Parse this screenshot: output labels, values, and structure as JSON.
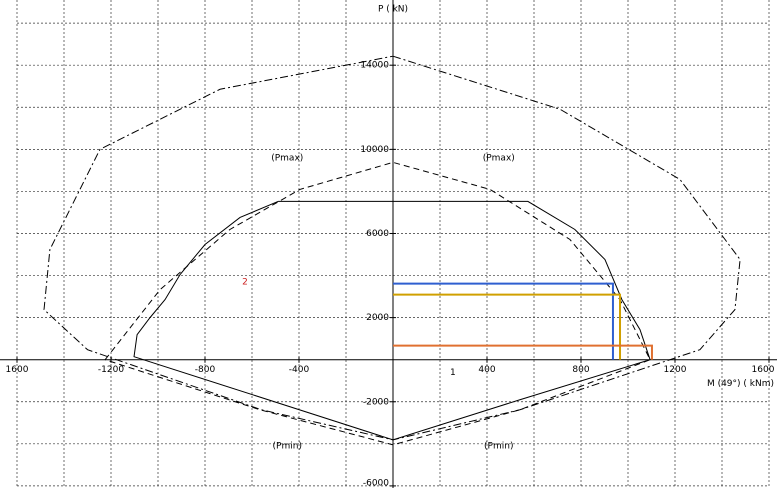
{
  "chart_data": {
    "type": "interaction",
    "x_label": "M (49°) ( kNm)",
    "y_label": "P ( kN)",
    "xlim": [
      -1600,
      1600
    ],
    "ylim": [
      -6100,
      17100
    ],
    "xticks": [
      {
        "value": -1600,
        "label": "1600"
      },
      -1200,
      -800,
      -400,
      400,
      800,
      1200,
      1600
    ],
    "yticks": [
      14000,
      10000,
      6000,
      2000,
      -2000,
      -6000
    ],
    "xgrid": [
      -1600,
      -1400,
      -1200,
      -1000,
      -800,
      -600,
      -400,
      -200,
      200,
      400,
      600,
      800,
      1000,
      1200,
      1400,
      1600
    ],
    "ygrid": [
      -6000,
      -4000,
      -2000,
      2000,
      4000,
      6000,
      8000,
      10000,
      12000,
      14000,
      16000
    ],
    "grid": true,
    "series": [
      {
        "style": "solid",
        "color": "#000000",
        "x": [
          -489,
          -651,
          -800,
          -906,
          -970,
          -1034,
          -1089,
          -1102,
          0,
          540,
          1094,
          1051,
          974,
          902,
          774,
          574,
          -489
        ],
        "values": [
          7524,
          6762,
          5476,
          4048,
          2857,
          2000,
          1190,
          143,
          -3810,
          -1905,
          0,
          1429,
          2857,
          4762,
          6190,
          7524,
          7524
        ]
      },
      {
        "style": "dashed",
        "color": "#000000",
        "x": [
          -1225,
          -991,
          -694,
          -396,
          0,
          413,
          753,
          966,
          1094,
          540,
          0,
          -566,
          -1225
        ],
        "values": [
          0,
          3333,
          6190,
          8095,
          9381,
          8095,
          5714,
          2857,
          0,
          -2381,
          -4048,
          -2381,
          0
        ]
      },
      {
        "style": "dashdot",
        "color": "#000000",
        "x": [
          0,
          711,
          1221,
          1477,
          1455,
          1306,
          540,
          0,
          -560,
          -1300,
          -1485,
          -1460,
          -1247,
          -736,
          0
        ],
        "values": [
          14429,
          11905,
          8571,
          4762,
          2381,
          476,
          -2381,
          -3810,
          -2381,
          476,
          2381,
          5238,
          10000,
          12857,
          14429
        ]
      }
    ],
    "load_points": [
      {
        "color": "#2f5fd0",
        "x": 936,
        "value": 3619
      },
      {
        "color": "#d0a000",
        "x": 966,
        "value": 3095
      },
      {
        "color": "#e07030",
        "x": 1102,
        "value": 667
      }
    ],
    "annotations": [
      {
        "text": "(Pmax)",
        "x": -450,
        "y": 9600
      },
      {
        "text": "(Pmax)",
        "x": 450,
        "y": 9600
      },
      {
        "text": "(Pmin)",
        "x": -450,
        "y": -4100
      },
      {
        "text": "(Pmin)",
        "x": 450,
        "y": -4100
      },
      {
        "text": "2",
        "x": -630,
        "y": 3700,
        "color": "#cc2222"
      },
      {
        "text": "1",
        "x": 255,
        "y": -600
      }
    ]
  }
}
